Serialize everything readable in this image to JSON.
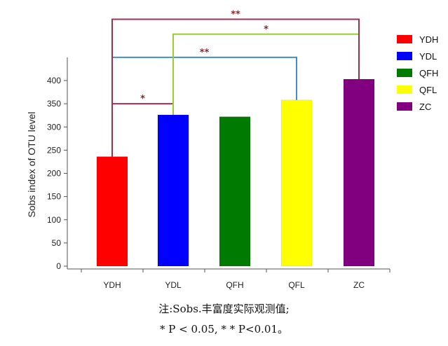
{
  "chart_data": {
    "type": "bar",
    "categories": [
      "YDH",
      "YDL",
      "QFH",
      "QFL",
      "ZC"
    ],
    "values": [
      236,
      326,
      322,
      358,
      403
    ],
    "colors": [
      "#ff0000",
      "#0000ff",
      "#007a00",
      "#ffff00",
      "#800080"
    ],
    "ylabel": "Sobs index of OTU level",
    "xlabel": "",
    "ylim": [
      0,
      450
    ],
    "yticks": [
      0,
      50,
      100,
      150,
      200,
      250,
      300,
      350,
      400
    ],
    "grid": false,
    "legend": {
      "placement": "right",
      "entries": [
        "YDH",
        "YDL",
        "QFH",
        "QFL",
        "ZC"
      ]
    },
    "significance": [
      {
        "from": "YDH",
        "to": "YDL",
        "label": "*",
        "color": "#a03050",
        "level": 350
      },
      {
        "from": "YDH",
        "to": "QFL",
        "label": "**",
        "color": "#3f8fd0",
        "level": 450
      },
      {
        "from": "YDL",
        "to": "ZC",
        "label": "*",
        "color": "#9acd32",
        "level": 500
      },
      {
        "from": "YDH",
        "to": "ZC",
        "label": "**",
        "color": "#a03050",
        "level": 532
      }
    ]
  },
  "notes": {
    "line1": "注:Sobs.丰富度实际观测值;",
    "line2": "* P < 0.05, * * P<0.01。"
  }
}
